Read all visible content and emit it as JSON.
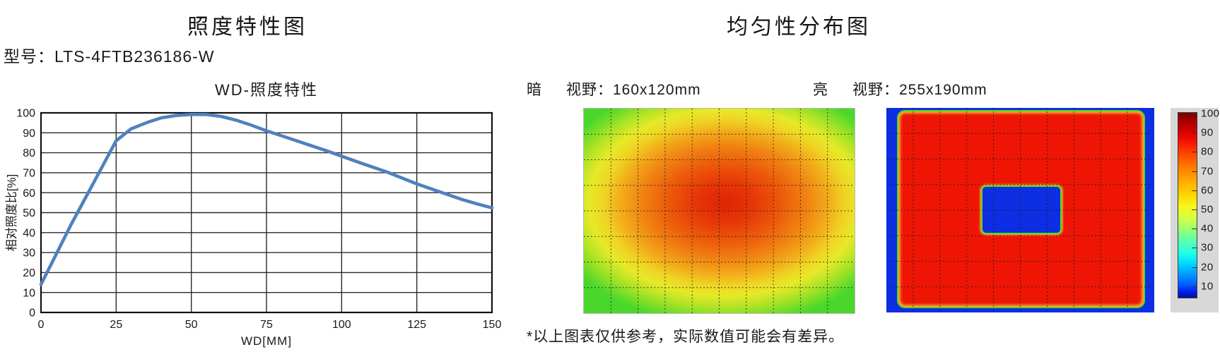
{
  "left_panel": {
    "title": "照度特性图",
    "model_line": "型号：LTS-4FTB236186-W"
  },
  "right_panel": {
    "title": "均匀性分布图",
    "footnote": "*以上图表仅供参考，实际数值可能会有差异。"
  },
  "chart_data": [
    {
      "type": "line",
      "title": "WD-照度特性",
      "xlabel": "WD[MM]",
      "ylabel": "相对照度比[%]",
      "xlim": [
        0,
        150
      ],
      "ylim": [
        0,
        100
      ],
      "x_ticks": [
        0,
        25,
        50,
        75,
        100,
        125,
        150
      ],
      "y_ticks": [
        0,
        10,
        20,
        30,
        40,
        50,
        60,
        70,
        80,
        90,
        100
      ],
      "grid": true,
      "legend": "none",
      "line_color": "#4f81bd",
      "x": [
        0,
        5,
        10,
        15,
        20,
        25,
        30,
        35,
        40,
        45,
        50,
        55,
        60,
        65,
        70,
        75,
        80,
        85,
        90,
        95,
        100,
        105,
        110,
        115,
        120,
        125,
        130,
        135,
        140,
        145,
        150
      ],
      "y": [
        14,
        29,
        44,
        58,
        72,
        86,
        92,
        95,
        97.5,
        98.7,
        99.2,
        99.2,
        98.2,
        96.3,
        93.8,
        91,
        88.5,
        86,
        83.5,
        81,
        78.3,
        75.6,
        73,
        70.4,
        67.4,
        64.4,
        61.8,
        59.2,
        56.6,
        54.4,
        52.4
      ]
    },
    {
      "type": "heatmap",
      "name": "dark-field-uniformity",
      "field_label": "暗",
      "fov_label": "视野：160x120mm",
      "grid": {
        "cols": 10,
        "rows": 8
      },
      "palette": "jet",
      "pattern": "red-orange hotspot slightly above center fading through orange and yellow to green at the edges and corners"
    },
    {
      "type": "heatmap",
      "name": "bright-field-uniformity",
      "field_label": "亮",
      "fov_label": "视野：255x190mm",
      "grid": {
        "cols": 10,
        "rows": 8
      },
      "palette": "jet",
      "pattern": "uniform high (red) field with thin green-yellow rim, blue low-value border band and a centered blue rectangular cutout",
      "colorbar": {
        "position": "right",
        "ticks": [
          100,
          90,
          80,
          70,
          60,
          50,
          40,
          30,
          20,
          10
        ]
      }
    }
  ]
}
